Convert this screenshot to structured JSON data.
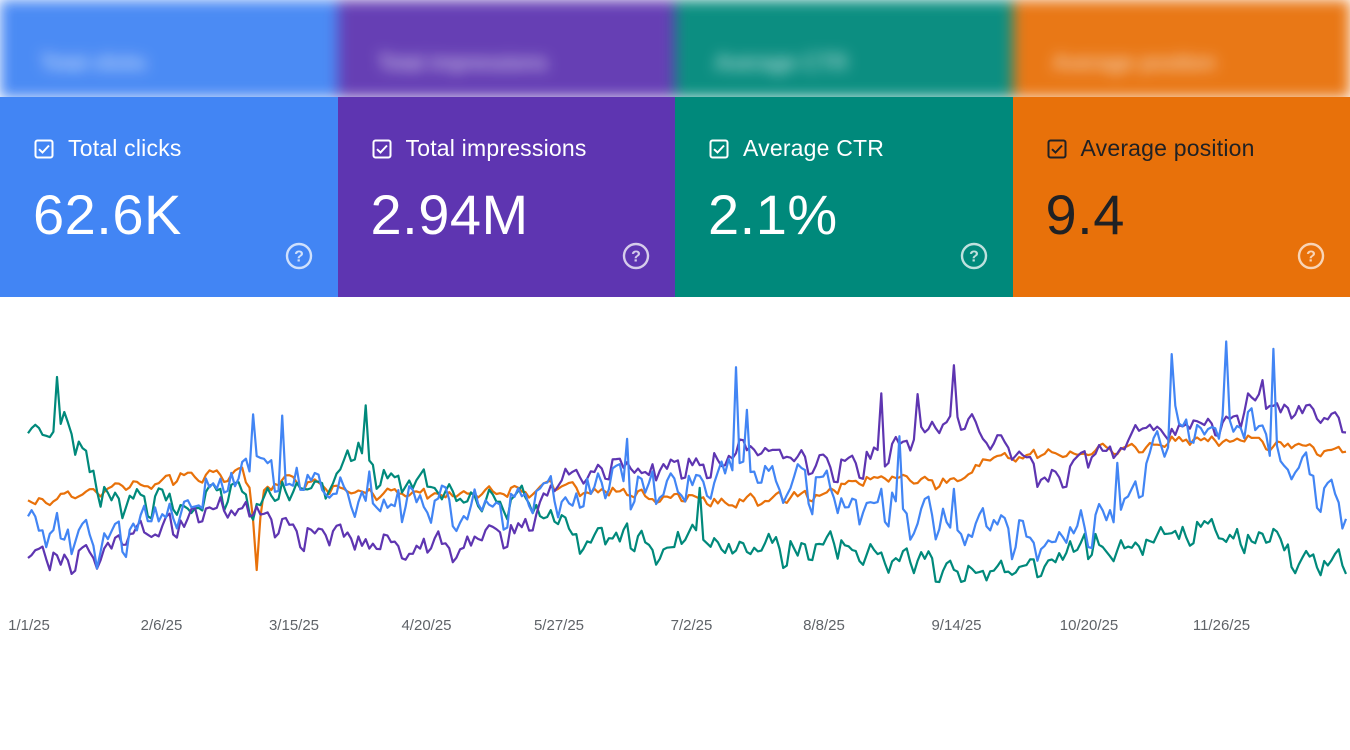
{
  "cards": [
    {
      "key": "clicks",
      "label": "Total clicks",
      "value": "62.6K",
      "color": "#4285F4",
      "help": "help-icon"
    },
    {
      "key": "impressions",
      "label": "Total impressions",
      "value": "2.94M",
      "color": "#5E35B1",
      "help": "help-icon"
    },
    {
      "key": "ctr",
      "label": "Average CTR",
      "value": "2.1%",
      "color": "#00897B",
      "help": "help-icon"
    },
    {
      "key": "position",
      "label": "Average position",
      "value": "9.4",
      "color": "#E8710A",
      "help": "help-icon"
    }
  ],
  "chart_data": {
    "type": "line",
    "title": "",
    "xlabel": "",
    "ylabel": "",
    "x_ticks": [
      "1/1/25",
      "2/6/25",
      "3/15/25",
      "4/20/25",
      "5/27/25",
      "7/2/25",
      "8/8/25",
      "9/14/25",
      "10/20/25",
      "11/26/25"
    ],
    "series": [
      {
        "name": "Total clicks",
        "color": "#4285F4"
      },
      {
        "name": "Total impressions",
        "color": "#5E35B1"
      },
      {
        "name": "Average CTR",
        "color": "#00897B"
      },
      {
        "name": "Average position",
        "color": "#E8710A"
      }
    ],
    "grid": false,
    "days": 364
  }
}
